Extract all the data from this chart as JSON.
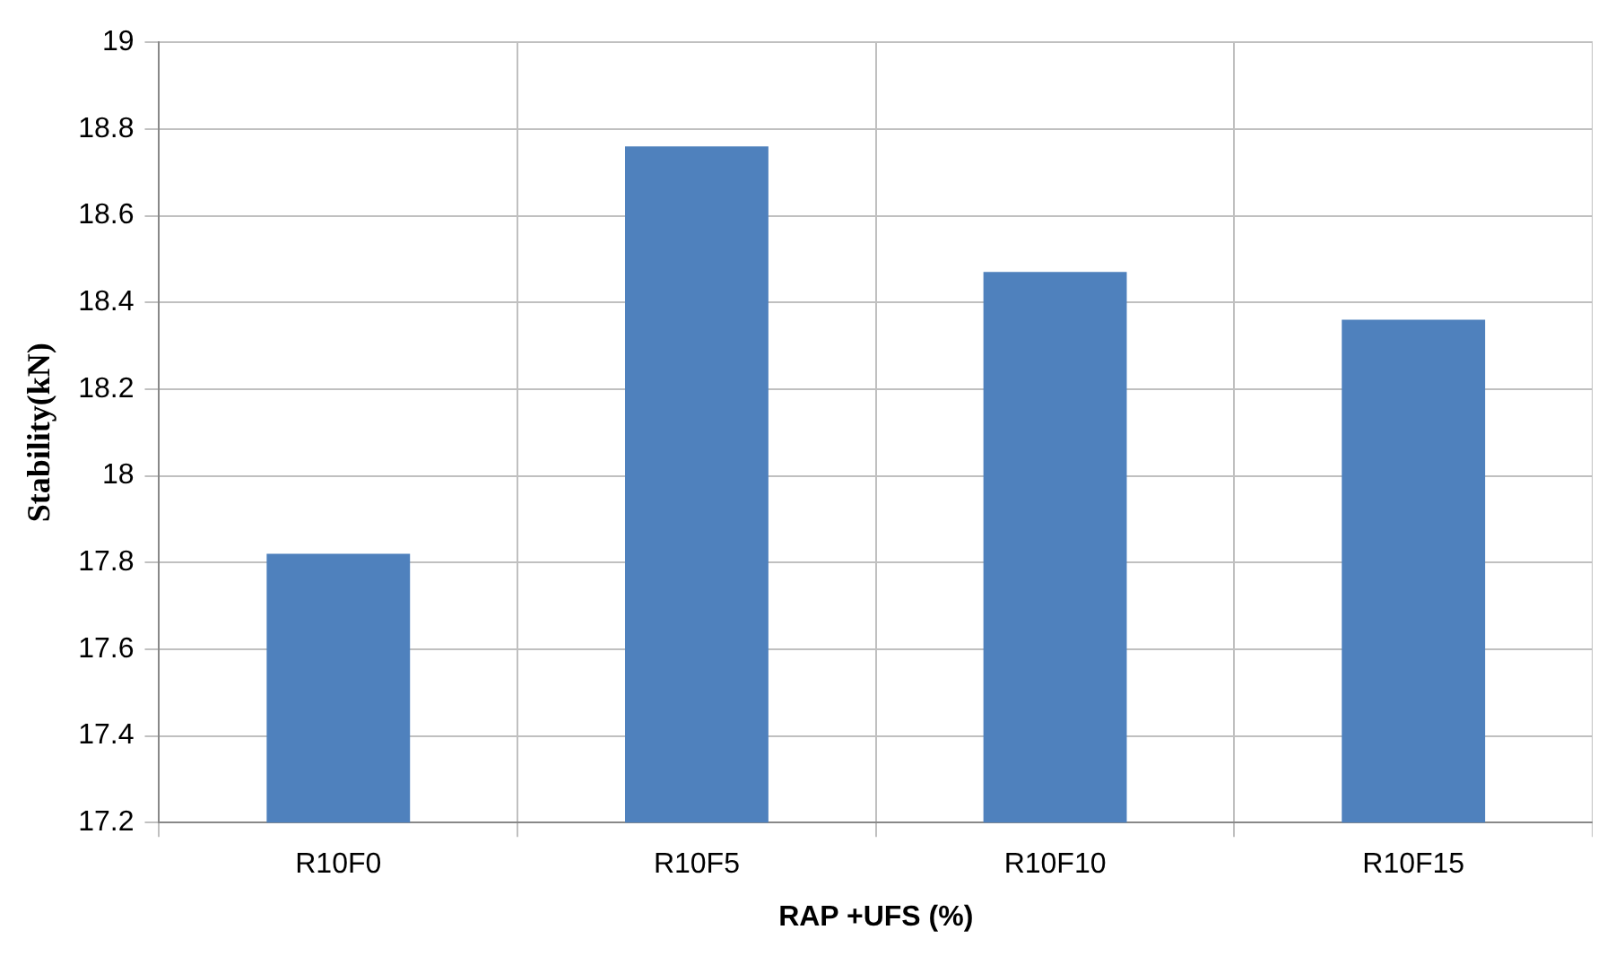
{
  "chart_data": {
    "type": "bar",
    "xlabel": "RAP +UFS (%)",
    "ylabel": "Stability(kN)",
    "categories": [
      "R10F0",
      "R10F5",
      "R10F10",
      "R10F15"
    ],
    "values": [
      17.82,
      18.76,
      18.47,
      18.36
    ],
    "color": "#4f81bd",
    "ylim": [
      17.2,
      19
    ],
    "yticks": [
      17.2,
      17.4,
      17.6,
      17.8,
      18,
      18.2,
      18.4,
      18.6,
      18.8,
      19
    ],
    "grid": true
  }
}
